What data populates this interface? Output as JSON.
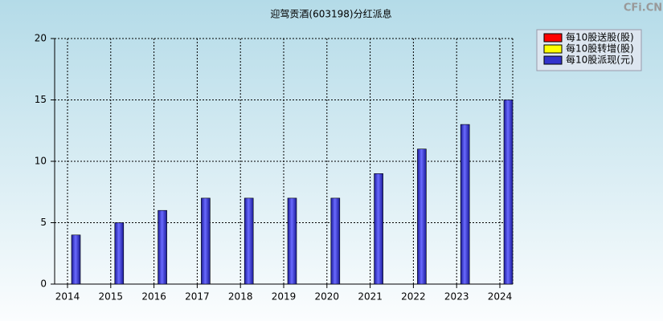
{
  "chart_data": {
    "type": "bar",
    "title": "迎驾贡酒(603198)分红派息",
    "watermark": "CFi.CN",
    "categories": [
      "2014",
      "2015",
      "2016",
      "2017",
      "2018",
      "2019",
      "2020",
      "2021",
      "2022",
      "2023",
      "2024"
    ],
    "series": [
      {
        "name": "每10股送股(股)",
        "color": "#ff0000",
        "values": [
          null,
          null,
          null,
          null,
          null,
          null,
          null,
          null,
          null,
          null,
          null
        ]
      },
      {
        "name": "每10股转增(股)",
        "color": "#ffff00",
        "values": [
          null,
          null,
          null,
          null,
          null,
          null,
          null,
          null,
          null,
          null,
          null
        ]
      },
      {
        "name": "每10股派现(元)",
        "color": "#3333cc",
        "values": [
          4,
          5,
          6,
          7,
          7,
          7,
          7,
          9,
          11,
          13,
          15
        ]
      }
    ],
    "ylim": [
      0,
      20
    ],
    "yticks": [
      0,
      5,
      10,
      15,
      20
    ],
    "grid": true
  }
}
